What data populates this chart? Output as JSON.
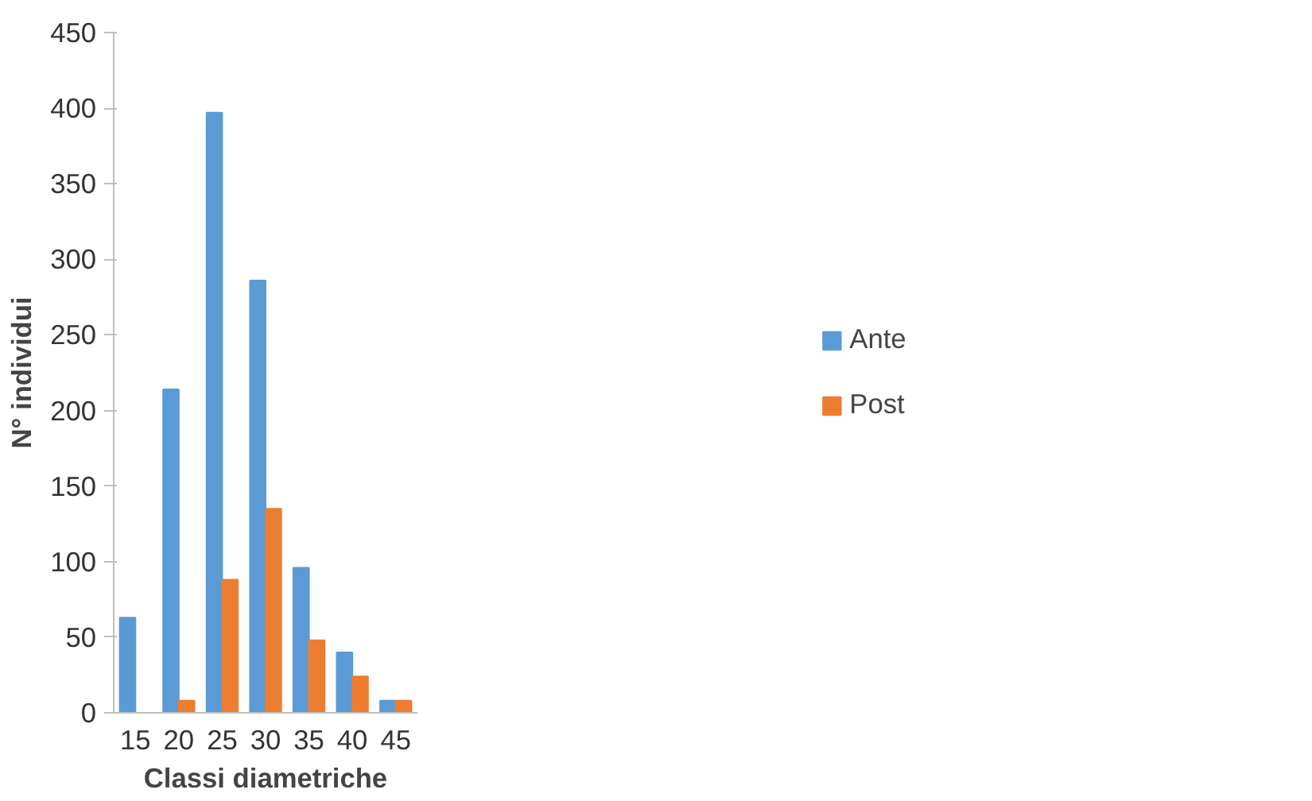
{
  "chart_data": {
    "type": "bar",
    "xlabel": "Classi diametriche",
    "ylabel": "N° individui",
    "categories": [
      "15",
      "20",
      "25",
      "30",
      "35",
      "40",
      "45"
    ],
    "series": [
      {
        "name": "Ante",
        "color": "#5b9bd5",
        "values": [
          63,
          214,
          397,
          286,
          96,
          40,
          8
        ]
      },
      {
        "name": "Post",
        "color": "#ed7d31",
        "values": [
          0,
          8,
          88,
          135,
          48,
          24,
          8
        ]
      }
    ],
    "ylim": [
      0,
      450
    ],
    "yticks": [
      0,
      50,
      100,
      150,
      200,
      250,
      300,
      350,
      400,
      450
    ],
    "grid": false,
    "legend": "right"
  }
}
